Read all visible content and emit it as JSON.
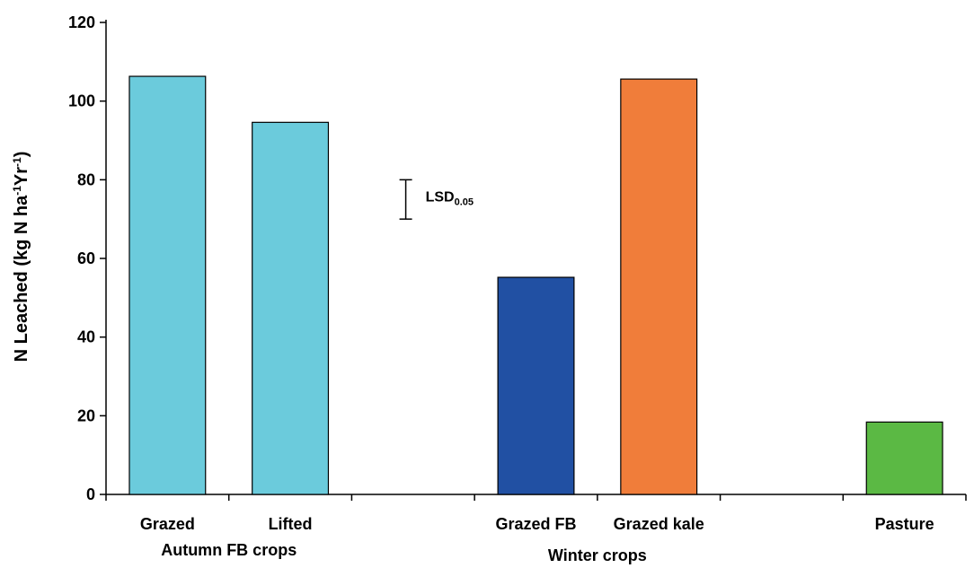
{
  "chart_data": {
    "type": "bar",
    "title": "",
    "ylabel": "N Leached (kg N ha-1Yr-1)",
    "ylabel_parts": [
      "N Leached (kg N ha",
      "-1",
      "Yr",
      "-1",
      ")"
    ],
    "ylim": [
      0,
      120
    ],
    "yticks": [
      0,
      20,
      40,
      60,
      80,
      100,
      120
    ],
    "grid": false,
    "legend": "none",
    "bars": [
      {
        "label": "Grazed",
        "value": 106.3,
        "color": "#6bcbdc"
      },
      {
        "label": "Lifted",
        "value": 94.6,
        "color": "#6bcbdc"
      },
      {
        "label": "",
        "value": null,
        "color": ""
      },
      {
        "label": "Grazed FB",
        "value": 55.2,
        "color": "#2150a3"
      },
      {
        "label": "Grazed kale",
        "value": 105.6,
        "color": "#f07d3a"
      },
      {
        "label": "",
        "value": null,
        "color": ""
      },
      {
        "label": "Pasture",
        "value": 18.4,
        "color": "#5bb944"
      }
    ],
    "groups": [
      {
        "label": "Autumn FB crops",
        "span": [
          0,
          1
        ]
      },
      {
        "label": "Winter crops",
        "span": [
          3,
          4
        ]
      }
    ],
    "lsd": {
      "label": "LSD",
      "subscript": "0.05",
      "low": 70,
      "high": 80
    }
  }
}
